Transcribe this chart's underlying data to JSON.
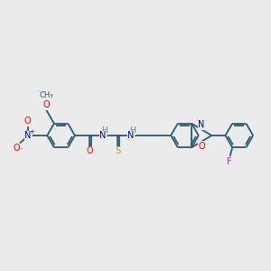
{
  "bg_color": "#ebebeb",
  "bond_color": "#2d5a6e",
  "atom_colors": {
    "O": "#ff0000",
    "N": "#0000cc",
    "S": "#aaaa00",
    "F": "#ff00ff",
    "H": "#558888"
  },
  "font_size": 7.0,
  "lw": 1.3
}
